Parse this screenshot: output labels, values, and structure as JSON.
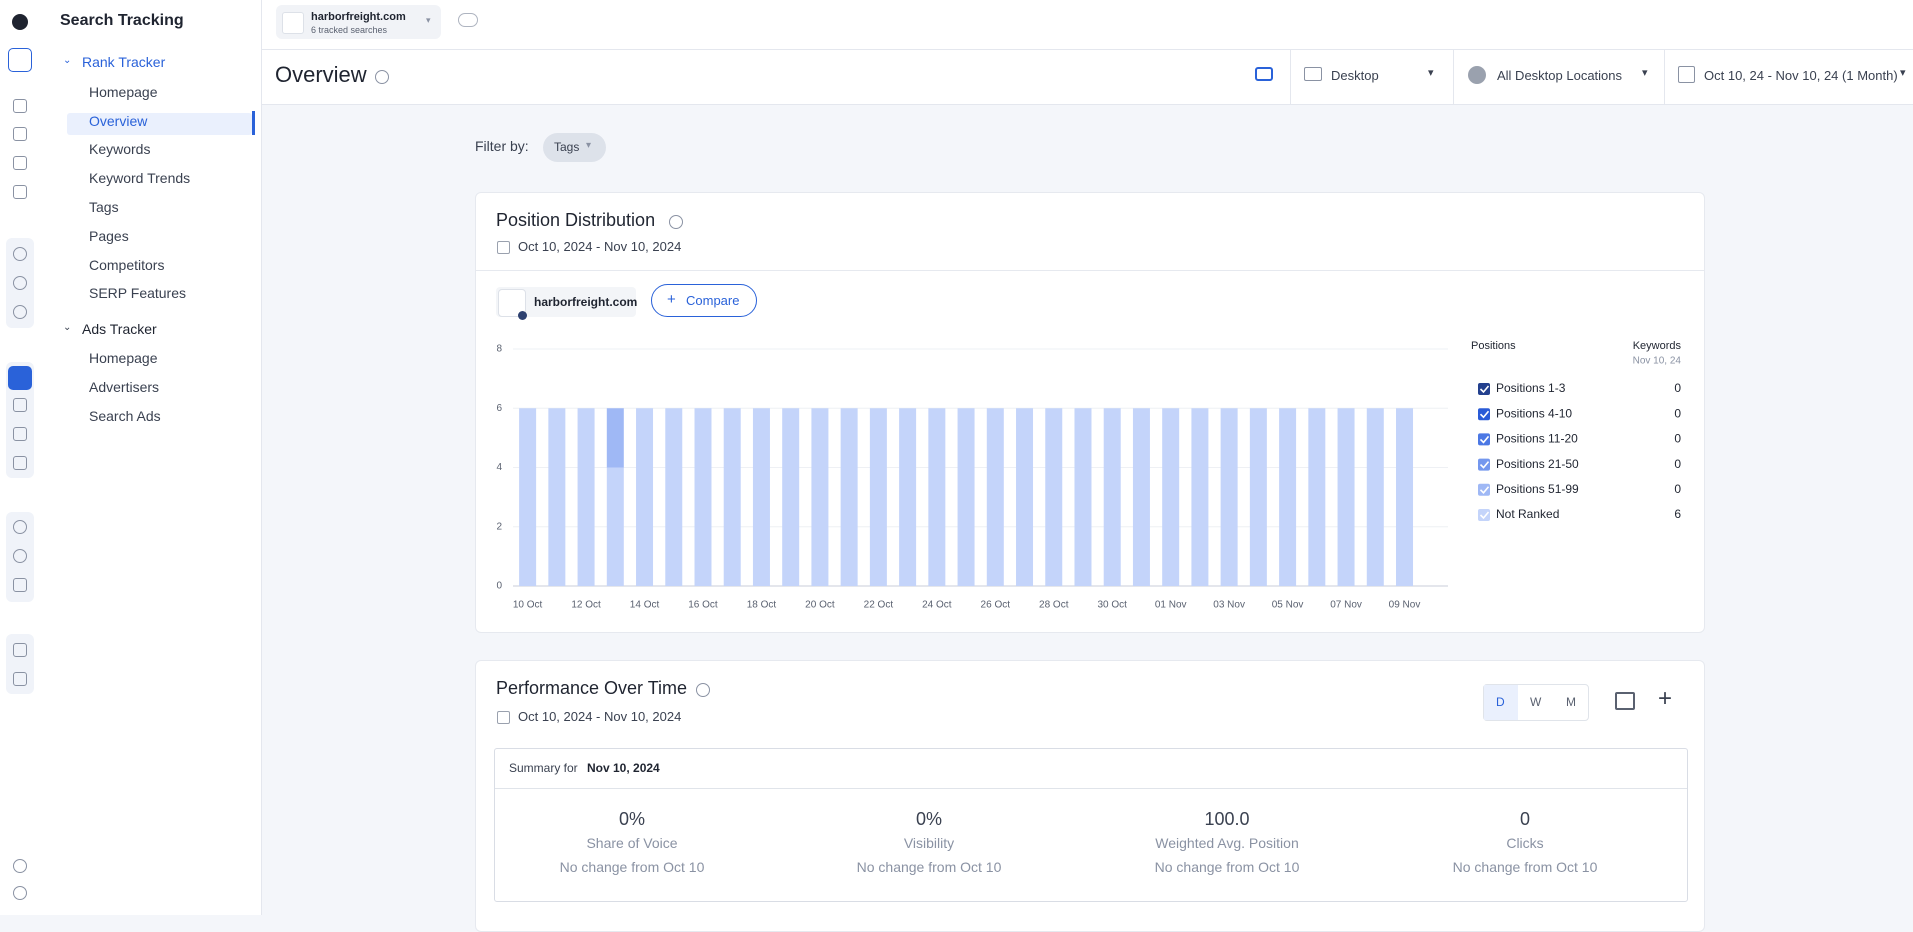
{
  "sidebar": {
    "title": "Search Tracking",
    "groups": [
      {
        "label": "Rank Tracker",
        "items": [
          "Homepage",
          "Overview",
          "Keywords",
          "Keyword Trends",
          "Tags",
          "Pages",
          "Competitors",
          "SERP Features"
        ]
      },
      {
        "label": "Ads Tracker",
        "items": [
          "Homepage",
          "Advertisers",
          "Search Ads"
        ]
      }
    ]
  },
  "topbar": {
    "domain": "harborfreight.com",
    "subtitle": "6 tracked searches"
  },
  "header": {
    "title": "Overview",
    "device": "Desktop",
    "location": "All Desktop Locations",
    "date_range": "Oct 10, 24 - Nov 10, 24 (1 Month)"
  },
  "filter": {
    "label": "Filter by:",
    "tag": "Tags"
  },
  "position_distribution": {
    "title": "Position Distribution",
    "date_range": "Oct 10, 2024 - Nov 10, 2024",
    "site": "harborfreight.com",
    "compare": "Compare",
    "legend_header": {
      "positions": "Positions",
      "keywords": "Keywords",
      "date": "Nov 10, 24"
    }
  },
  "chart_data": {
    "type": "bar",
    "stacked": true,
    "categories": [
      "10 Oct",
      null,
      "12 Oct",
      null,
      "14 Oct",
      null,
      "16 Oct",
      null,
      "18 Oct",
      null,
      "20 Oct",
      null,
      "22 Oct",
      null,
      "24 Oct",
      null,
      "26 Oct",
      null,
      "28 Oct",
      null,
      "30 Oct",
      null,
      "01 Nov",
      null,
      "03 Nov",
      null,
      "05 Nov",
      null,
      "07 Nov",
      null,
      "09 Nov"
    ],
    "series": [
      {
        "name": "Positions 1-3",
        "color": "#23408e",
        "keywords": 0,
        "values": [
          0,
          0,
          0,
          0,
          0,
          0,
          0,
          0,
          0,
          0,
          0,
          0,
          0,
          0,
          0,
          0,
          0,
          0,
          0,
          0,
          0,
          0,
          0,
          0,
          0,
          0,
          0,
          0,
          0,
          0,
          0
        ]
      },
      {
        "name": "Positions 4-10",
        "color": "#2a5bd7",
        "keywords": 0,
        "values": [
          0,
          0,
          0,
          0,
          0,
          0,
          0,
          0,
          0,
          0,
          0,
          0,
          0,
          0,
          0,
          0,
          0,
          0,
          0,
          0,
          0,
          0,
          0,
          0,
          0,
          0,
          0,
          0,
          0,
          0,
          0
        ]
      },
      {
        "name": "Positions 11-20",
        "color": "#4c78e4",
        "keywords": 0,
        "values": [
          0,
          0,
          0,
          0,
          0,
          0,
          0,
          0,
          0,
          0,
          0,
          0,
          0,
          0,
          0,
          0,
          0,
          0,
          0,
          0,
          0,
          0,
          0,
          0,
          0,
          0,
          0,
          0,
          0,
          0,
          0
        ]
      },
      {
        "name": "Positions 21-50",
        "color": "#7497ee",
        "keywords": 0,
        "values": [
          0,
          0,
          0,
          0,
          0,
          0,
          0,
          0,
          0,
          0,
          0,
          0,
          0,
          0,
          0,
          0,
          0,
          0,
          0,
          0,
          0,
          0,
          0,
          0,
          0,
          0,
          0,
          0,
          0,
          0,
          0
        ]
      },
      {
        "name": "Positions 51-99",
        "color": "#9fb8f5",
        "keywords": 0,
        "values": [
          0,
          0,
          0,
          2,
          0,
          0,
          0,
          0,
          0,
          0,
          0,
          0,
          0,
          0,
          0,
          0,
          0,
          0,
          0,
          0,
          0,
          0,
          0,
          0,
          0,
          0,
          0,
          0,
          0,
          0,
          0
        ]
      },
      {
        "name": "Not Ranked",
        "color": "#c4d4fa",
        "keywords": 6,
        "values": [
          6,
          6,
          6,
          4,
          6,
          6,
          6,
          6,
          6,
          6,
          6,
          6,
          6,
          6,
          6,
          6,
          6,
          6,
          6,
          6,
          6,
          6,
          6,
          6,
          6,
          6,
          6,
          6,
          6,
          6,
          6
        ]
      }
    ],
    "ylim": [
      0,
      8
    ],
    "yticks": [
      0,
      2,
      4,
      6,
      8
    ],
    "grid": true
  },
  "performance": {
    "title": "Performance Over Time",
    "date_range": "Oct 10, 2024 - Nov 10, 2024",
    "periods": [
      "D",
      "W",
      "M"
    ],
    "summary_label": "Summary for",
    "summary_date": "Nov 10, 2024",
    "metrics": [
      {
        "value": "0%",
        "label": "Share of Voice",
        "change": "No change from Oct 10"
      },
      {
        "value": "0%",
        "label": "Visibility",
        "change": "No change from Oct 10"
      },
      {
        "value": "100.0",
        "label": "Weighted Avg. Position",
        "change": "No change from Oct 10"
      },
      {
        "value": "0",
        "label": "Clicks",
        "change": "No change from Oct 10"
      }
    ]
  }
}
